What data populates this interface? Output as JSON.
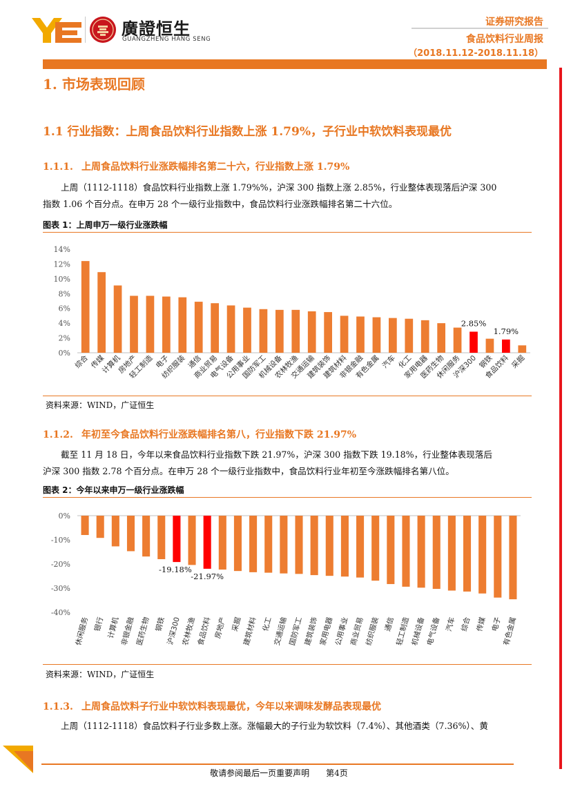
{
  "header": {
    "brand_cn": "廣證恒生",
    "brand_en": "GUANGZHENG HANG SENG",
    "report_type": "证券研究报告",
    "report_name": "食品饮料行业周报",
    "report_date": "（2018.11.12-2018.11.18）",
    "colors": {
      "accent": "#e87722",
      "red": "#e8151b",
      "logo_yellow": "#f2a900"
    },
    "icons": [
      "logo-mark-icon",
      "seal-icon"
    ]
  },
  "section": {
    "h1": "1. 市场表现回顾",
    "h2": "1.1 行业指数：上周食品饮料行业指数上涨 1.79%，子行业中软饮料表现最优",
    "s111": {
      "num": "1.1.1.",
      "title": "上周食品饮料行业涨跌幅排名第二十六，行业指数上涨 1.79%",
      "p_line1": "上周（1112-1118）食品饮料行业指数上涨 1.79%%，沪深 300 指数上涨 2.85%，行业整体表现落后沪深 300",
      "p_line2": "指数 1.06 个百分点。在申万 28 个一级行业指数中，食品饮料行业涨跌幅排名第二十六位。",
      "fig_title": "图表 1：上周申万一级行业涨跌幅",
      "source": "资料来源：WIND，广证恒生"
    },
    "s112": {
      "num": "1.1.2.",
      "title": "年初至今食品饮料行业涨跌幅排名第八，行业指数下跌 21.97%",
      "p_line1": "截至 11 月 18 日，今年以来食品饮料行业指数下跌 21.97%，沪深 300 指数下跌 19.18%，行业整体表现落后",
      "p_line2": "沪深 300 指数 2.78 个百分点。在申万 28 个一级行业指数中，食品饮料行业年初至今涨跌幅排名第八位。",
      "fig_title": "图表 2：今年以来申万一级行业涨跌幅",
      "source": "资料来源：WIND，广证恒生"
    },
    "s113": {
      "num": "1.1.3.",
      "title": "上周食品饮料子行业中软饮料表现最优，今年以来调味发酵品表现最优",
      "p_line1": "上周（1112-1118）食品饮料子行业多数上涨。涨幅最大的子行业为软饮料（7.4%）、其他酒类（7.36%）、黄"
    }
  },
  "footer": {
    "text": "敬请参阅最后一页重要声明　　第4页"
  },
  "chart_data": [
    {
      "type": "bar",
      "categories": [
        "综合",
        "传媒",
        "计算机",
        "房地产",
        "轻工制造",
        "电子",
        "纺织服装",
        "通信",
        "商业贸易",
        "电气设备",
        "公用事业",
        "国防军工",
        "机械设备",
        "农林牧渔",
        "交通运输",
        "建筑装饰",
        "建筑材料",
        "非银金融",
        "有色金属",
        "汽车",
        "化工",
        "家用电器",
        "医药生物",
        "休闲服务",
        "沪深300",
        "钢铁",
        "食品饮料",
        "采掘"
      ],
      "values": [
        12.4,
        10.9,
        9.1,
        7.7,
        7.7,
        7.6,
        7.5,
        6.9,
        6.7,
        6.4,
        6.1,
        5.9,
        5.8,
        5.8,
        5.6,
        5.5,
        5.0,
        4.9,
        4.8,
        4.7,
        4.6,
        4.4,
        4.0,
        3.4,
        2.85,
        1.9,
        1.79,
        1.0
      ],
      "highlight": [
        "沪深300",
        "食品饮料"
      ],
      "data_labels": [
        {
          "category": "沪深300",
          "text": "2.85%"
        },
        {
          "category": "食品饮料",
          "text": "1.79%"
        }
      ],
      "yticks": [
        "0%",
        "2%",
        "4%",
        "6%",
        "8%",
        "10%",
        "12%",
        "14%"
      ],
      "ylim": [
        0,
        14
      ],
      "colors": {
        "bar": "#ed7d31",
        "highlight": "#ff0000"
      },
      "grid": false,
      "legend": "none"
    },
    {
      "type": "bar",
      "categories": [
        "休闲服务",
        "银行",
        "计算机",
        "非银金融",
        "医药生物",
        "钢铁",
        "沪深300",
        "农林牧渔",
        "食品饮料",
        "房地产",
        "采掘",
        "建筑材料",
        "化工",
        "交通运输",
        "国防军工",
        "建筑装饰",
        "家用电器",
        "公用事业",
        "商业贸易",
        "纺织服装",
        "通信",
        "轻工制造",
        "机械设备",
        "电气设备",
        "汽车",
        "综合",
        "传媒",
        "电子",
        "有色金属"
      ],
      "values": [
        -8.0,
        -9.2,
        -12.7,
        -14.7,
        -16.9,
        -18.0,
        -19.18,
        -20.4,
        -21.97,
        -22.3,
        -22.9,
        -23.4,
        -23.6,
        -23.9,
        -24.1,
        -24.6,
        -24.9,
        -25.2,
        -25.6,
        -26.9,
        -28.3,
        -29.4,
        -29.8,
        -30.3,
        -31.0,
        -31.4,
        -32.2,
        -33.9,
        -34.6
      ],
      "highlight": [
        "沪深300",
        "食品饮料"
      ],
      "data_labels": [
        {
          "category": "沪深300",
          "text": "-19.18%"
        },
        {
          "category": "食品饮料",
          "text": "-21.97%"
        }
      ],
      "yticks": [
        "0%",
        "-10%",
        "-20%",
        "-30%",
        "-40%"
      ],
      "ylim": [
        -40,
        0
      ],
      "colors": {
        "bar": "#ed7d31",
        "highlight": "#ff0000"
      },
      "grid": false,
      "legend": "none"
    }
  ]
}
